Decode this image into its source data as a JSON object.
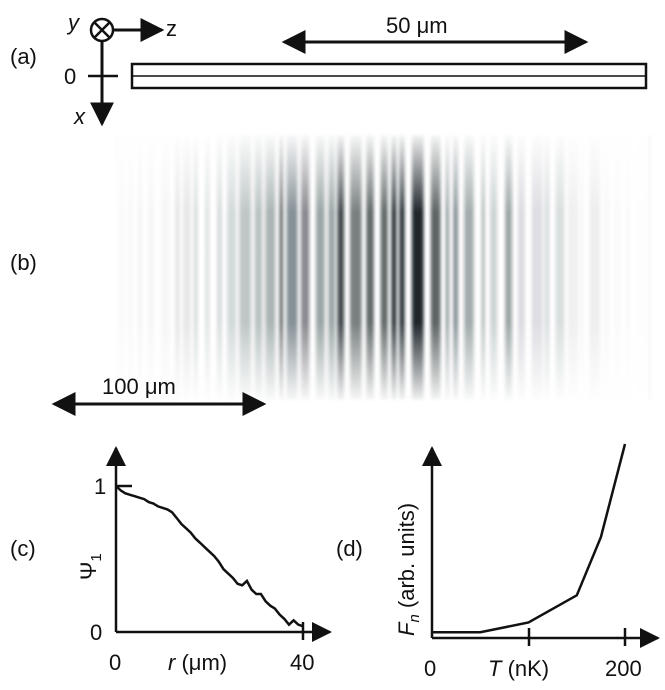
{
  "panel_a": {
    "label": "(a)",
    "axis_y": "y",
    "axis_z": "z",
    "axis_x": "x",
    "zero": "0",
    "scale": "50 μm"
  },
  "panel_b": {
    "label": "(b)",
    "scale": "100 μm"
  },
  "chart_data": [
    {
      "type": "line",
      "panel": "(c)",
      "ylabel": "Ψ1",
      "xlabel": "r (μm)",
      "xticks": [
        "0",
        "40"
      ],
      "yticks": [
        "0",
        "1"
      ],
      "xlim": [
        0,
        40
      ],
      "ylim": [
        0,
        1
      ],
      "x": [
        0,
        1,
        2,
        3,
        4,
        5,
        6,
        7,
        8,
        9,
        10,
        11,
        12,
        13,
        14,
        15,
        16,
        17,
        18,
        19,
        20,
        21,
        22,
        23,
        24,
        25,
        26,
        27,
        28,
        29,
        30,
        31,
        32,
        33,
        34,
        35,
        36,
        37,
        38,
        39,
        40
      ],
      "y": [
        1.0,
        0.97,
        0.95,
        0.94,
        0.93,
        0.92,
        0.91,
        0.89,
        0.88,
        0.86,
        0.85,
        0.84,
        0.82,
        0.78,
        0.74,
        0.71,
        0.68,
        0.64,
        0.61,
        0.58,
        0.55,
        0.52,
        0.48,
        0.43,
        0.4,
        0.37,
        0.33,
        0.32,
        0.35,
        0.29,
        0.26,
        0.26,
        0.21,
        0.18,
        0.16,
        0.12,
        0.09,
        0.05,
        0.08,
        0.05,
        0.04
      ]
    },
    {
      "type": "line",
      "panel": "(d)",
      "ylabel": "Fn (arb. units)",
      "xlabel": "T (nK)",
      "xticks": [
        "0",
        "200"
      ],
      "xlim": [
        0,
        200
      ],
      "x": [
        0,
        50,
        100,
        150,
        175,
        200
      ],
      "y": [
        0.03,
        0.03,
        0.08,
        0.22,
        0.52,
        1.0
      ]
    }
  ]
}
